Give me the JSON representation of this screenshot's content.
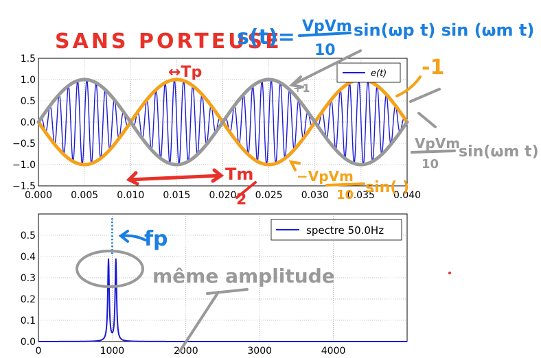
{
  "chart_data": [
    {
      "type": "line",
      "series": [
        {
          "name": "e(t)",
          "color": "#1a1ad6"
        }
      ],
      "x_range": [
        0.0,
        0.04
      ],
      "y_range": [
        -1.5,
        1.5
      ],
      "x_ticks": [
        "0.000",
        "0.005",
        "0.010",
        "0.015",
        "0.020",
        "0.025",
        "0.030",
        "0.035",
        "0.040"
      ],
      "y_ticks": [
        "1.5",
        "1.0",
        "0.5",
        "0.0",
        "−0.5",
        "−1.0",
        "−1.5"
      ],
      "carrier_hz": 1000,
      "modulation_hz": 50,
      "amplitude": 1.0,
      "grid": true,
      "legend_position": "top-right",
      "envelope_colors": {
        "positive": "#f5a21a",
        "negative": "#999999"
      }
    },
    {
      "type": "line",
      "series": [
        {
          "name": "spectre 50.0Hz",
          "color": "#1a1ad6"
        }
      ],
      "x_range": [
        0,
        5000
      ],
      "y_range": [
        0.0,
        0.6
      ],
      "x_ticks": [
        "0",
        "1000",
        "2000",
        "3000",
        "4000"
      ],
      "y_ticks": [
        "0.5",
        "0.4",
        "0.3",
        "0.2",
        "0.1",
        "0.0"
      ],
      "peaks": [
        {
          "x": 950,
          "y": 0.385
        },
        {
          "x": 1050,
          "y": 0.385
        }
      ],
      "carrier_marker_x": 1000,
      "grid": true,
      "legend_position": "top-right"
    }
  ],
  "annotations": {
    "title_red": "SANS PORTEUSE",
    "formula_lhs": "s(t)=",
    "formula_num": "VpVm",
    "formula_den": "10",
    "formula_tail": "sin(ωp t) sin (ωm t)",
    "tp_label": "↔Tp",
    "tm_label": "Tm",
    "tm_half": "2",
    "minus_one": "-1",
    "plus_one": "+1",
    "right_env_num": "VpVm",
    "right_env_den": "10",
    "right_env_tail": "sin(ωm t)",
    "minus_env": "−VpVm",
    "minus_env_den": "10",
    "minus_env_tail": "sin( )",
    "fp_label": "fp",
    "meme_amplitude": "même amplitude",
    "colors": {
      "red": "#e8312a",
      "blue_ink": "#1a7fe0",
      "orange": "#f5a21a",
      "gray": "#999999"
    }
  }
}
